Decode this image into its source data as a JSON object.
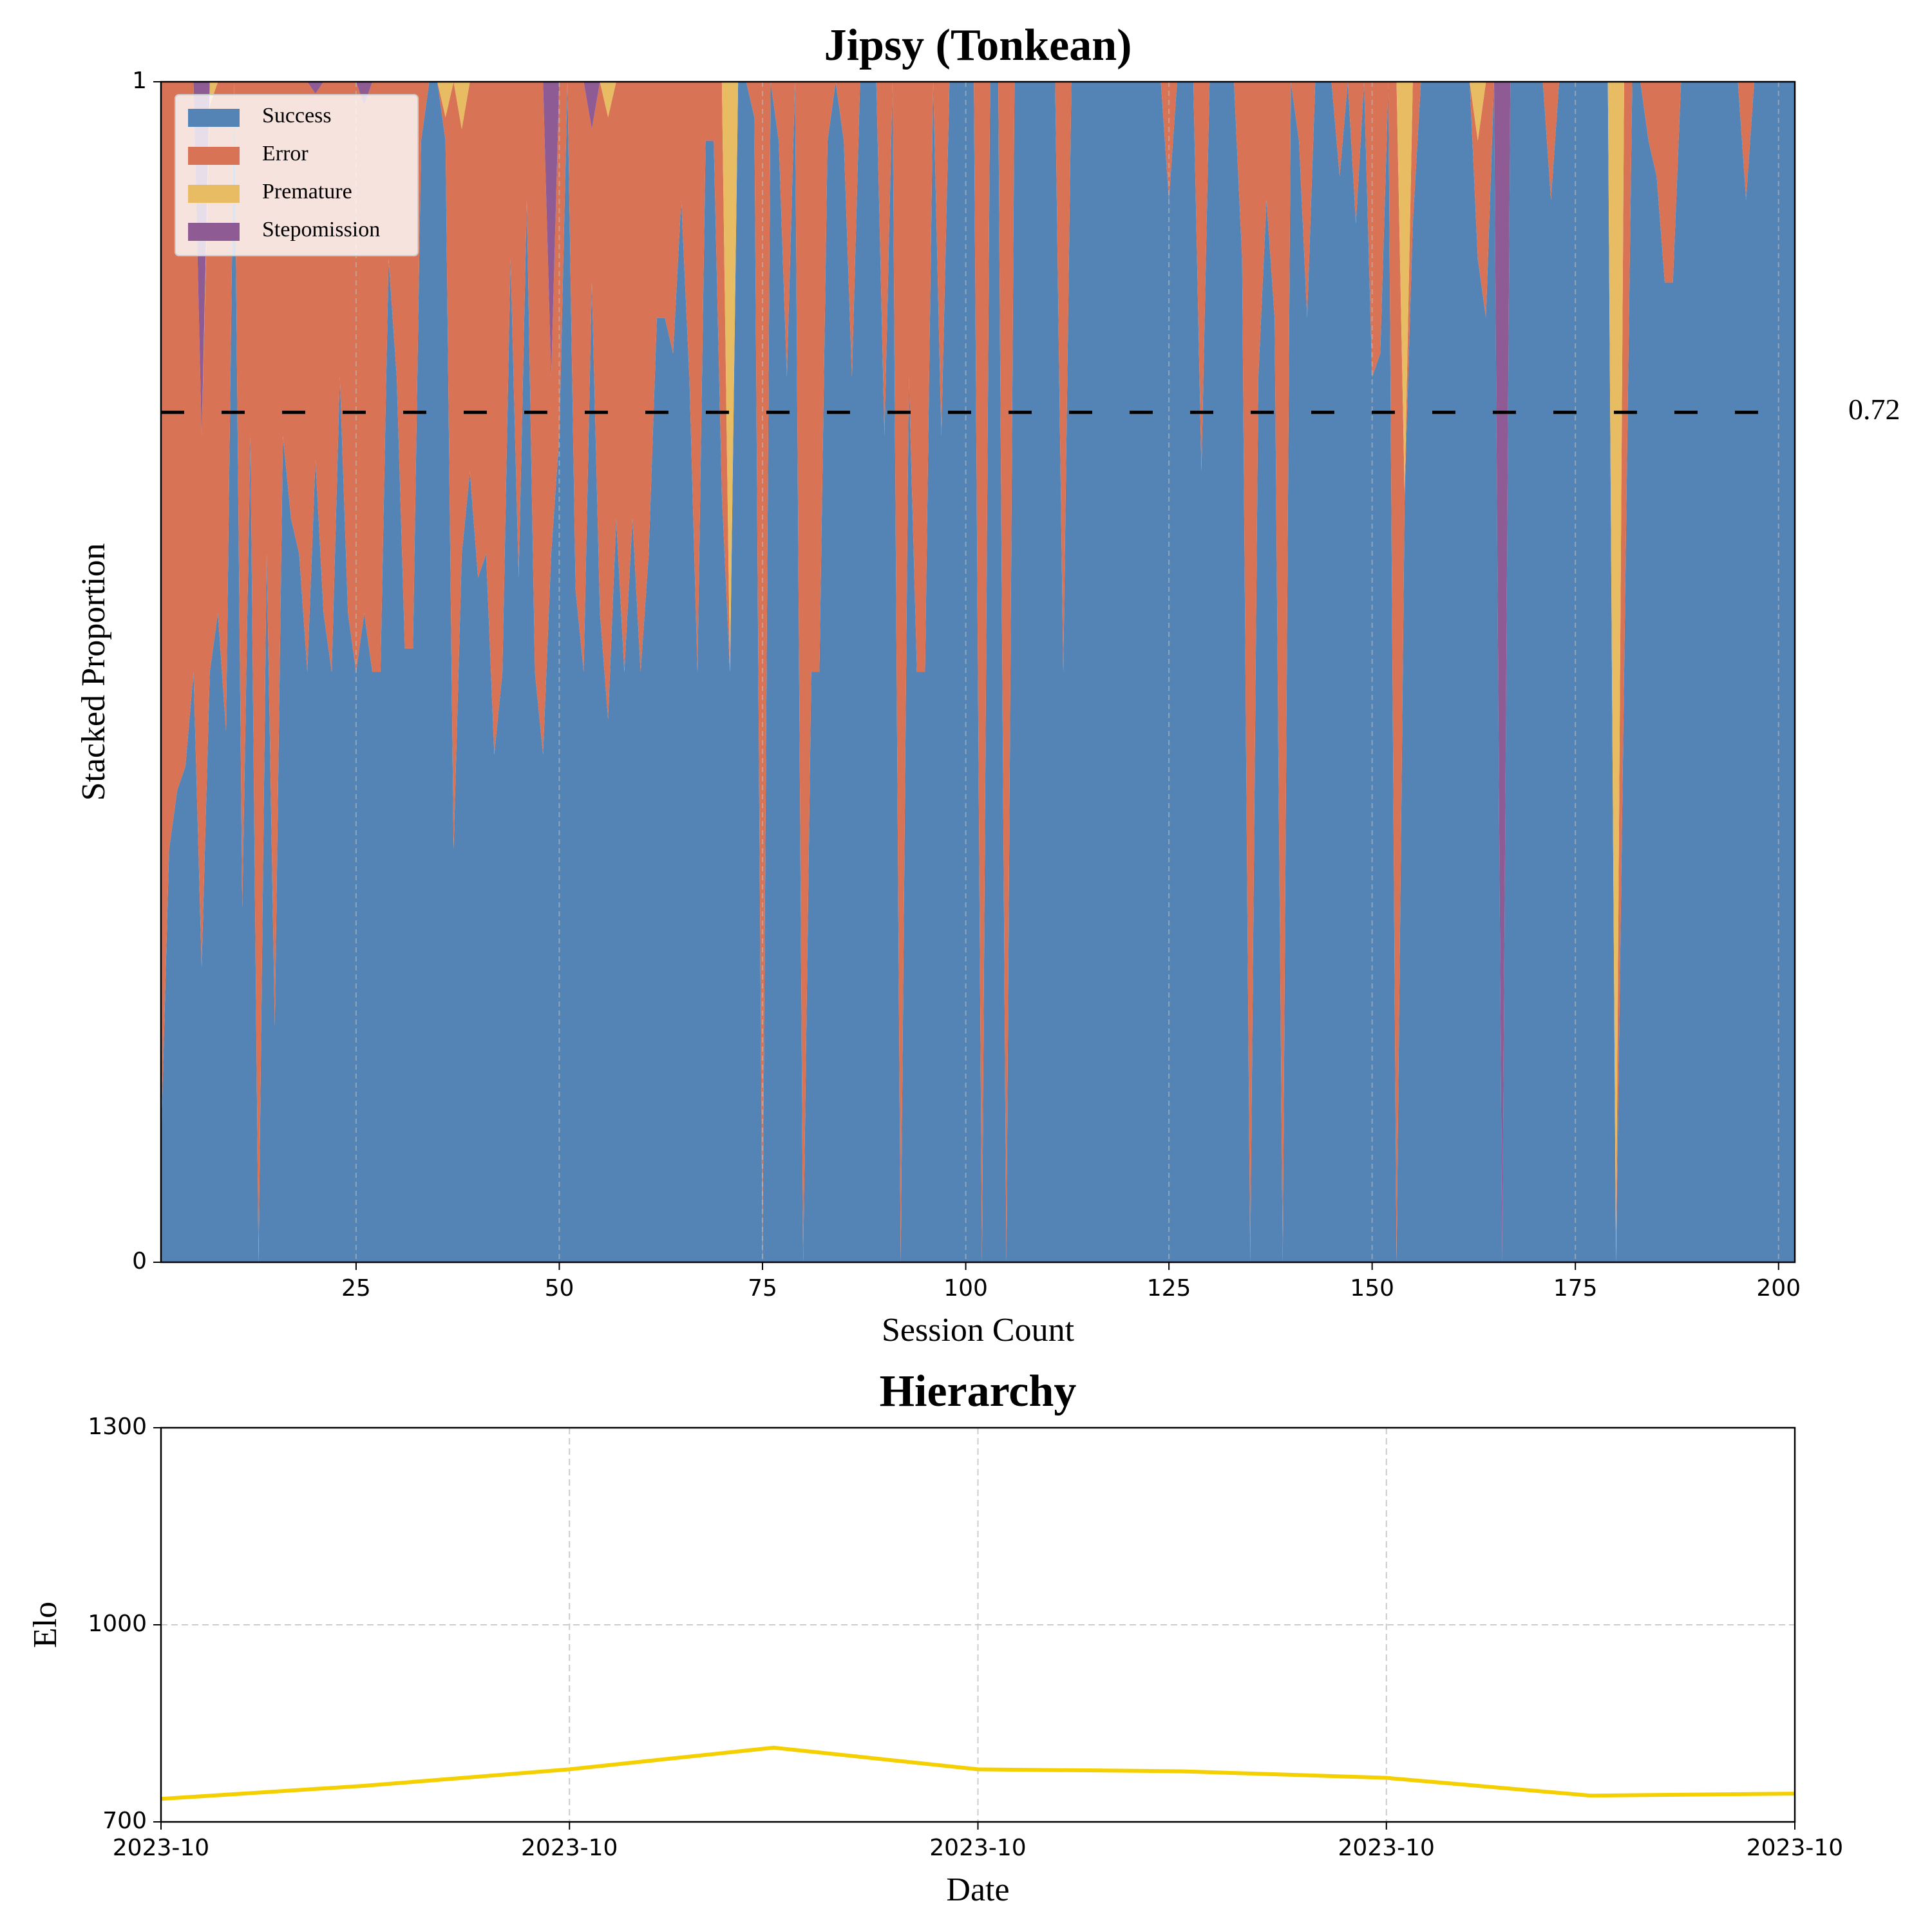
{
  "chart_data": [
    {
      "type": "area",
      "title": "Jipsy (Tonkean)",
      "xlabel": "Session Count",
      "ylabel": "Stacked Proportion",
      "x": [
        1,
        2,
        3,
        4,
        5,
        6,
        7,
        8,
        9,
        10,
        11,
        12,
        13,
        14,
        15,
        16,
        17,
        18,
        19,
        20,
        21,
        22,
        23,
        24,
        25,
        26,
        27,
        28,
        29,
        30,
        31,
        32,
        33,
        34,
        35,
        36,
        37,
        38,
        39,
        40,
        41,
        42,
        43,
        44,
        45,
        46,
        47,
        48,
        49,
        50,
        51,
        52,
        53,
        54,
        55,
        56,
        57,
        58,
        59,
        60,
        61,
        62,
        63,
        64,
        65,
        66,
        67,
        68,
        69,
        70,
        71,
        72,
        73,
        74,
        75,
        76,
        77,
        78,
        79,
        80,
        81,
        82,
        83,
        84,
        85,
        86,
        87,
        88,
        89,
        90,
        91,
        92,
        93,
        94,
        95,
        96,
        97,
        98,
        99,
        100,
        101,
        102,
        103,
        104,
        105,
        106,
        107,
        108,
        109,
        110,
        111,
        112,
        113,
        114,
        115,
        116,
        117,
        118,
        119,
        120,
        121,
        122,
        123,
        124,
        125,
        126,
        127,
        128,
        129,
        130,
        131,
        132,
        133,
        134,
        135,
        136,
        137,
        138,
        139,
        140,
        141,
        142,
        143,
        144,
        145,
        146,
        147,
        148,
        149,
        150,
        151,
        152,
        153,
        154,
        155,
        156,
        157,
        158,
        159,
        160,
        161,
        162,
        163,
        164,
        165,
        166,
        167,
        168,
        169,
        170,
        171,
        172,
        173,
        174,
        175,
        176,
        177,
        178,
        179,
        180,
        181,
        182,
        183,
        184,
        185,
        186,
        187,
        188,
        189,
        190,
        191,
        192,
        193,
        194,
        195,
        196,
        197,
        198,
        199,
        200,
        201,
        202
      ],
      "series": [
        {
          "name": "Success",
          "color": "#5484b5",
          "values": [
            0.1,
            0.35,
            0.4,
            0.42,
            0.5,
            0.25,
            0.5,
            0.55,
            0.45,
            1,
            0.3,
            0.7,
            0,
            0.6,
            0.2,
            0.7,
            0.63,
            0.6,
            0.5,
            0.68,
            0.55,
            0.5,
            0.75,
            0.55,
            0.5,
            0.55,
            0.5,
            0.5,
            0.85,
            0.75,
            0.52,
            0.52,
            0.95,
            1,
            1,
            0.95,
            0.35,
            0.6,
            0.67,
            0.58,
            0.6,
            0.43,
            0.5,
            0.85,
            0.58,
            0.9,
            0.5,
            0.43,
            0.6,
            0.7,
            1,
            0.57,
            0.5,
            0.83,
            0.55,
            0.46,
            0.63,
            0.5,
            0.63,
            0.5,
            0.6,
            0.8,
            0.8,
            0.77,
            0.9,
            0.75,
            0.5,
            0.95,
            0.95,
            0.65,
            0.5,
            1,
            1,
            0.97,
            0,
            1,
            0.95,
            0.75,
            1,
            0,
            0.5,
            0.5,
            0.95,
            1,
            0.95,
            0.75,
            1,
            1,
            1,
            0.7,
            1,
            0,
            0.75,
            0.5,
            0.5,
            1,
            0.7,
            1,
            1,
            1,
            1,
            0,
            1,
            1,
            0,
            1,
            1,
            1,
            1,
            1,
            1,
            0.5,
            1,
            1,
            1,
            1,
            1,
            1,
            1,
            1,
            1,
            1,
            1,
            1,
            0.9,
            1,
            1,
            1,
            0.67,
            1,
            1,
            1,
            1,
            0.85,
            0,
            0.75,
            0.9,
            0.8,
            0,
            1,
            0.95,
            0.8,
            1,
            1,
            1,
            0.92,
            1,
            0.88,
            1,
            0.75,
            0.77,
            1,
            0,
            0.65,
            0.88,
            1,
            1,
            1,
            1,
            1,
            1,
            1,
            0.85,
            0.8,
            1,
            0,
            1,
            1,
            1,
            1,
            1,
            0.9,
            1,
            1,
            1,
            1,
            1,
            1,
            1,
            0,
            0.5,
            1,
            1,
            0.95,
            0.92,
            0.83,
            0.83,
            1,
            1,
            1,
            1,
            1,
            1,
            1,
            1,
            0.9,
            1,
            1,
            1,
            1,
            1,
            1
          ]
        },
        {
          "name": "Error",
          "color": "#d87356",
          "values": [
            0.9,
            0.65,
            0.6,
            0.58,
            0.5,
            0.45,
            0.48,
            0.45,
            0.55,
            0,
            0.7,
            0.3,
            1,
            0.4,
            0.8,
            0.3,
            0.37,
            0.4,
            0.5,
            0.31,
            0.45,
            0.5,
            0.25,
            0.45,
            0.5,
            0.43,
            0.5,
            0.5,
            0.15,
            0.25,
            0.48,
            0.48,
            0.05,
            0,
            0,
            0.02,
            0.65,
            0.36,
            0.33,
            0.42,
            0.4,
            0.57,
            0.5,
            0.15,
            0.42,
            0.1,
            0.5,
            0.57,
            0.15,
            0.3,
            0,
            0.43,
            0.5,
            0.13,
            0.45,
            0.51,
            0.37,
            0.5,
            0.37,
            0.5,
            0.4,
            0.2,
            0.2,
            0.23,
            0.1,
            0.25,
            0.5,
            0.05,
            0.05,
            0.35,
            0,
            0,
            0,
            0.03,
            1,
            0,
            0.05,
            0.25,
            0,
            1,
            0.5,
            0.5,
            0.05,
            0,
            0.05,
            0.25,
            0,
            0,
            0,
            0.3,
            0,
            1,
            0.25,
            0.5,
            0.5,
            0,
            0.3,
            0,
            0,
            0,
            0,
            1,
            0,
            0,
            1,
            0,
            0,
            0,
            0,
            0,
            0,
            0.5,
            0,
            0,
            0,
            0,
            0,
            0,
            0,
            0,
            0,
            0,
            0,
            0,
            0.1,
            0,
            0,
            0,
            0.33,
            0,
            0,
            0,
            0,
            0.15,
            1,
            0.25,
            0.1,
            0.2,
            1,
            0,
            0.05,
            0.2,
            0,
            0,
            0,
            0.08,
            0,
            0.12,
            0,
            0.25,
            0.23,
            0,
            1,
            0,
            0.12,
            0,
            0,
            0,
            0,
            0,
            0,
            0,
            0.1,
            0.2,
            0,
            0,
            0,
            0,
            0,
            0,
            0,
            0.1,
            0,
            0,
            0,
            0,
            0,
            0,
            0,
            0,
            0.5,
            0,
            0,
            0.05,
            0.08,
            0.17,
            0.17,
            0,
            0,
            0,
            0,
            0,
            0,
            0,
            0,
            0.1,
            0,
            0,
            0,
            0,
            0,
            0
          ]
        },
        {
          "name": "Premature",
          "color": "#e8bc62",
          "values": [
            0,
            0,
            0,
            0,
            0,
            0,
            0.02,
            0,
            0,
            0,
            0,
            0,
            0,
            0,
            0,
            0,
            0,
            0,
            0,
            0,
            0,
            0,
            0,
            0,
            0,
            0,
            0,
            0,
            0,
            0,
            0,
            0,
            0,
            0,
            0,
            0.03,
            0,
            0.04,
            0,
            0,
            0,
            0,
            0,
            0,
            0,
            0,
            0,
            0,
            0,
            0,
            0,
            0,
            0,
            0,
            0,
            0.03,
            0,
            0,
            0,
            0,
            0,
            0,
            0,
            0,
            0,
            0,
            0,
            0,
            0,
            0,
            0.5,
            0,
            0,
            0,
            0,
            0,
            0,
            0,
            0,
            0,
            0,
            0,
            0,
            0,
            0,
            0,
            0,
            0,
            0,
            0,
            0,
            0,
            0,
            0,
            0,
            0,
            0,
            0,
            0,
            0,
            0,
            0,
            0,
            0,
            0,
            0,
            0,
            0,
            0,
            0,
            0,
            0,
            0,
            0,
            0,
            0,
            0,
            0,
            0,
            0,
            0,
            0,
            0,
            0,
            0,
            0,
            0,
            0,
            0,
            0,
            0,
            0,
            0,
            0,
            0,
            0,
            0,
            0,
            0,
            0,
            0,
            0,
            0,
            0,
            0,
            0,
            0,
            0,
            0,
            0,
            0,
            0,
            0,
            0.35,
            0,
            0,
            0,
            0,
            0,
            0,
            0,
            0,
            0.05,
            0,
            0,
            0,
            0,
            0,
            0,
            0,
            0,
            0,
            0,
            0,
            0,
            0,
            0,
            0,
            0,
            1,
            0,
            0,
            0,
            0,
            0,
            0,
            0,
            0,
            0,
            0,
            0,
            0,
            0,
            0,
            0,
            0,
            0,
            0,
            0,
            0,
            0,
            0
          ]
        },
        {
          "name": "Stepomission",
          "color": "#8e5b94",
          "values": [
            0,
            0,
            0,
            0,
            0,
            0.3,
            0,
            0,
            0,
            0,
            0,
            0,
            0,
            0,
            0,
            0,
            0,
            0,
            0,
            0.01,
            0,
            0,
            0,
            0,
            0,
            0.02,
            0,
            0,
            0,
            0,
            0,
            0,
            0,
            0,
            0,
            0,
            0,
            0,
            0,
            0,
            0,
            0,
            0,
            0,
            0,
            0,
            0,
            0,
            0.25,
            0,
            0,
            0,
            0,
            0.04,
            0,
            0,
            0,
            0,
            0,
            0,
            0,
            0,
            0,
            0,
            0,
            0,
            0,
            0,
            0,
            0,
            0,
            0,
            0,
            0,
            0,
            0,
            0,
            0,
            0,
            0,
            0,
            0,
            0,
            0,
            0,
            0,
            0,
            0,
            0,
            0,
            0,
            0,
            0,
            0,
            0,
            0,
            0,
            0,
            0,
            0,
            0,
            0,
            0,
            0,
            0,
            0,
            0,
            0,
            0,
            0,
            0,
            0,
            0,
            0,
            0,
            0,
            0,
            0,
            0,
            0,
            0,
            0,
            0,
            0,
            0,
            0,
            0,
            0,
            0,
            0,
            0,
            0,
            0,
            0,
            0,
            0,
            0,
            0,
            0,
            0,
            0,
            0,
            0,
            0,
            0,
            0,
            0,
            0,
            0,
            0,
            0,
            0,
            0,
            0,
            0,
            0,
            0,
            0,
            0,
            0,
            0,
            0,
            0,
            0,
            0,
            1,
            0,
            0,
            0,
            0,
            0,
            0,
            0,
            0,
            0,
            0,
            0,
            0,
            0,
            0,
            0,
            0,
            0,
            0,
            0,
            0,
            0,
            0,
            0,
            0,
            0,
            0,
            0,
            0,
            0,
            0,
            0,
            0,
            0,
            0,
            0,
            0
          ]
        }
      ],
      "reference_line": 0.72,
      "xlim": [
        1,
        202
      ],
      "xticks": [
        25,
        50,
        75,
        100,
        125,
        150,
        175,
        200
      ],
      "ylim": [
        0,
        1
      ],
      "yticks": [
        0,
        1
      ],
      "grid": true,
      "legend": "upper left"
    },
    {
      "type": "line",
      "title": "Hierarchy",
      "xlabel": "Date",
      "ylabel": "Elo",
      "categories": [
        "2023-10",
        null,
        "2023-10",
        null,
        "2023-10",
        null,
        "2023-10",
        null,
        "2023-10"
      ],
      "series": [
        {
          "name": "Elo",
          "color": "#f5d000",
          "values": [
            735,
            755,
            780,
            813,
            780,
            777,
            767,
            740,
            743
          ]
        }
      ],
      "ylim": [
        700,
        1300
      ],
      "yticks": [
        700,
        1000,
        1300
      ],
      "grid": true
    }
  ]
}
